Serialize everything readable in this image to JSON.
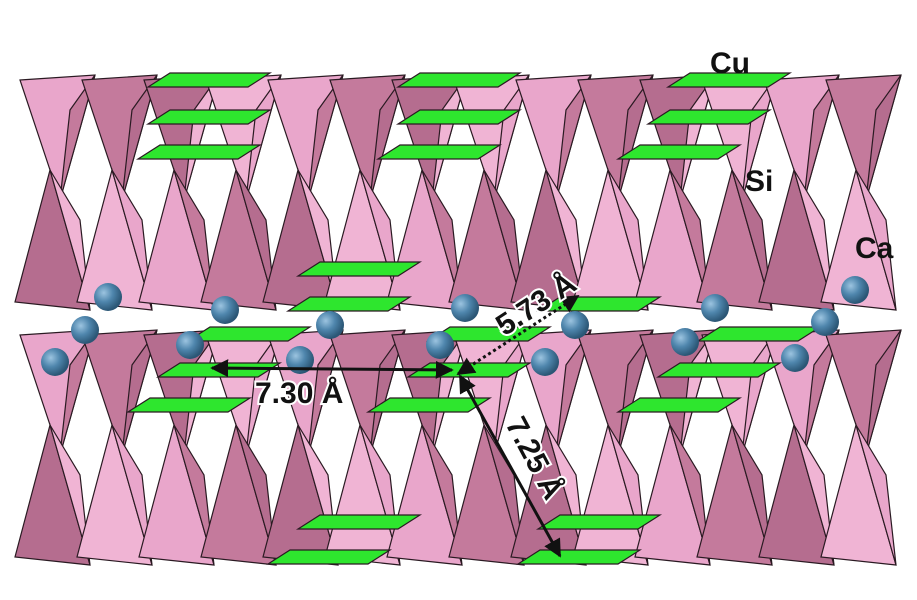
{
  "atom_labels": [
    "Cu",
    "Si",
    "Ca"
  ],
  "distances": [
    "7.30 Å",
    "5.73 Å",
    "7.25 Å"
  ]
}
